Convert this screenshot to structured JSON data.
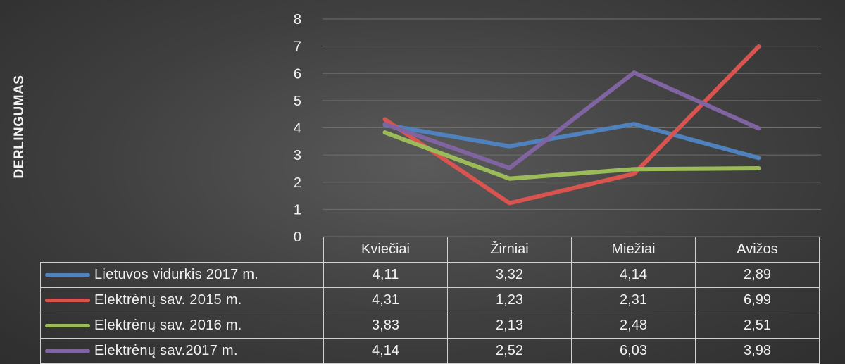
{
  "chart_data": {
    "type": "line",
    "title": "",
    "xlabel": "",
    "ylabel": "DERLINGUMAS",
    "ylim": [
      0,
      8
    ],
    "yticks": [
      "0",
      "1",
      "2",
      "3",
      "4",
      "5",
      "6",
      "7",
      "8"
    ],
    "grid": true,
    "legend": "data-table",
    "categories": [
      "Kviečiai",
      "Žirniai",
      "Miežiai",
      "Avižos"
    ],
    "series": [
      {
        "name": "Lietuvos vidurkis 2017 m.",
        "color": "#4f81bd",
        "values": [
          4.11,
          3.32,
          4.14,
          2.89
        ],
        "labels": [
          "4,11",
          "3,32",
          "4,14",
          "2,89"
        ]
      },
      {
        "name": "Elektrėnų sav. 2015 m.",
        "color": "#d9534f",
        "values": [
          4.31,
          1.23,
          2.31,
          6.99
        ],
        "labels": [
          "4,31",
          "1,23",
          "2,31",
          "6,99"
        ]
      },
      {
        "name": "Elektrėnų sav. 2016 m.",
        "color": "#9bbb59",
        "values": [
          3.83,
          2.13,
          2.48,
          2.51
        ],
        "labels": [
          "3,83",
          "2,13",
          "2,48",
          "2,51"
        ]
      },
      {
        "name": "Elektrėnų sav.2017 m.",
        "color": "#8064a2",
        "values": [
          4.14,
          2.52,
          6.03,
          3.98
        ],
        "labels": [
          "4,14",
          "2,52",
          "6,03",
          "3,98"
        ]
      }
    ]
  }
}
